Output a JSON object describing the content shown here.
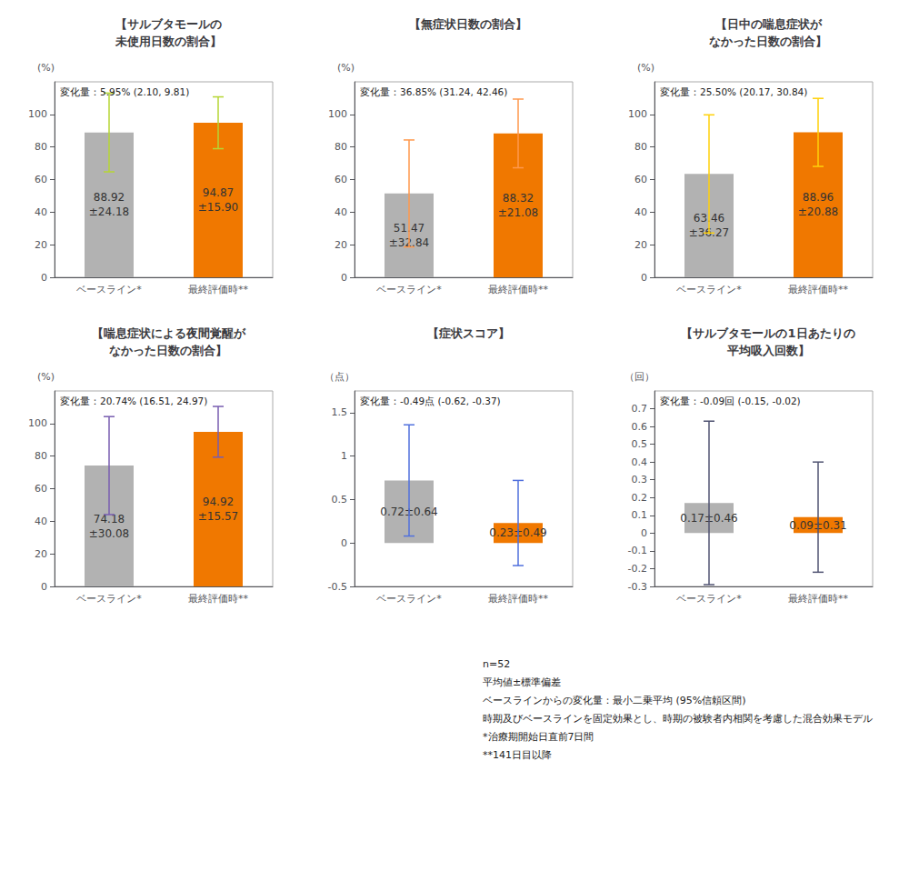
{
  "chart_data": [
    {
      "type": "bar",
      "title": "【サルブタモールの\n未使用日数の割合】",
      "ylabel": "(%)",
      "categories": [
        "ベースライン*",
        "最終評価時**"
      ],
      "values": [
        88.92,
        94.87
      ],
      "errors": [
        24.18,
        15.9
      ],
      "value_labels": [
        "88.92\n±24.18",
        "94.87\n±15.90"
      ],
      "data_labels": true,
      "colors": [
        "#b2b2b2",
        "#f07800"
      ],
      "annotation": "変化量：5.95% (2.10, 9.81)",
      "ylim": [
        0,
        120
      ],
      "yticks": [
        0,
        20,
        40,
        60,
        80,
        100
      ],
      "grid": false
    },
    {
      "type": "bar",
      "title": "【無症状日数の割合】",
      "ylabel": "(%)",
      "categories": [
        "ベースライン*",
        "最終評価時**"
      ],
      "values": [
        51.47,
        88.32
      ],
      "errors": [
        32.84,
        21.08
      ],
      "value_labels": [
        "51.47\n±32.84",
        "88.32\n±21.08"
      ],
      "data_labels": true,
      "colors": [
        "#b2b2b2",
        "#f07800"
      ],
      "annotation": "変化量：36.85% (31.24, 42.46)",
      "ylim": [
        0,
        120
      ],
      "yticks": [
        0,
        20,
        40,
        60,
        80,
        100
      ],
      "grid": false
    },
    {
      "type": "bar",
      "title": "【日中の喘息症状が\nなかった日数の割合】",
      "ylabel": "(%)",
      "categories": [
        "ベースライン*",
        "最終評価時**"
      ],
      "values": [
        63.46,
        88.96
      ],
      "errors": [
        36.27,
        20.88
      ],
      "value_labels": [
        "63.46\n±36.27",
        "88.96\n±20.88"
      ],
      "data_labels": true,
      "colors": [
        "#b2b2b2",
        "#f07800"
      ],
      "annotation": "変化量：25.50% (20.17, 30.84)",
      "ylim": [
        0,
        120
      ],
      "yticks": [
        0,
        20,
        40,
        60,
        80,
        100
      ],
      "grid": false
    },
    {
      "type": "bar",
      "title": "【喘息症状による夜間覚醒が\nなかった日数の割合】",
      "ylabel": "(%)",
      "categories": [
        "ベースライン*",
        "最終評価時**"
      ],
      "values": [
        74.18,
        94.92
      ],
      "errors": [
        30.08,
        15.57
      ],
      "value_labels": [
        "74.18\n±30.08",
        "94.92\n±15.57"
      ],
      "data_labels": true,
      "colors": [
        "#b2b2b2",
        "#f07800"
      ],
      "annotation": "変化量：20.74% (16.51, 24.97)",
      "ylim": [
        0,
        120
      ],
      "yticks": [
        0,
        20,
        40,
        60,
        80,
        100
      ],
      "grid": false
    },
    {
      "type": "bar",
      "title": "【症状スコア】",
      "ylabel": "（点）",
      "categories": [
        "ベースライン*",
        "最終評価時**"
      ],
      "values": [
        0.72,
        0.23
      ],
      "errors": [
        0.64,
        0.49
      ],
      "value_labels": [
        "0.72±0.64",
        "0.23±0.49"
      ],
      "data_labels": true,
      "colors": [
        "#b2b2b2",
        "#f07800"
      ],
      "annotation": "変化量：-0.49点 (-0.62, -0.37)",
      "ylim": [
        -0.5,
        1.75
      ],
      "yticks": [
        -0.5,
        0,
        0.5,
        1,
        1.5
      ],
      "grid": false
    },
    {
      "type": "bar",
      "title": "【サルブタモールの1日あたりの\n平均吸入回数】",
      "ylabel": "（回）",
      "categories": [
        "ベースライン*",
        "最終評価時**"
      ],
      "values": [
        0.17,
        0.09
      ],
      "errors": [
        0.46,
        0.31
      ],
      "value_labels": [
        "0.17±0.46",
        "0.09±0.31"
      ],
      "data_labels": true,
      "colors": [
        "#b2b2b2",
        "#f07800"
      ],
      "annotation": "変化量：-0.09回 (-0.15, -0.02)",
      "ylim": [
        -0.3,
        0.8
      ],
      "yticks": [
        -0.3,
        -0.2,
        -0.1,
        0,
        0.1,
        0.2,
        0.3,
        0.4,
        0.5,
        0.6,
        0.7
      ],
      "grid": false
    }
  ],
  "footnote": [
    "n=52",
    "平均値±標準偏差",
    "ベースラインからの変化量：最小二乗平均 (95%信頼区間)",
    "時期及びベースラインを固定効果とし、時期の被験者内相関を考慮した混合効果モデル",
    "*治療期開始日直前7日間",
    "**141日目以降"
  ]
}
